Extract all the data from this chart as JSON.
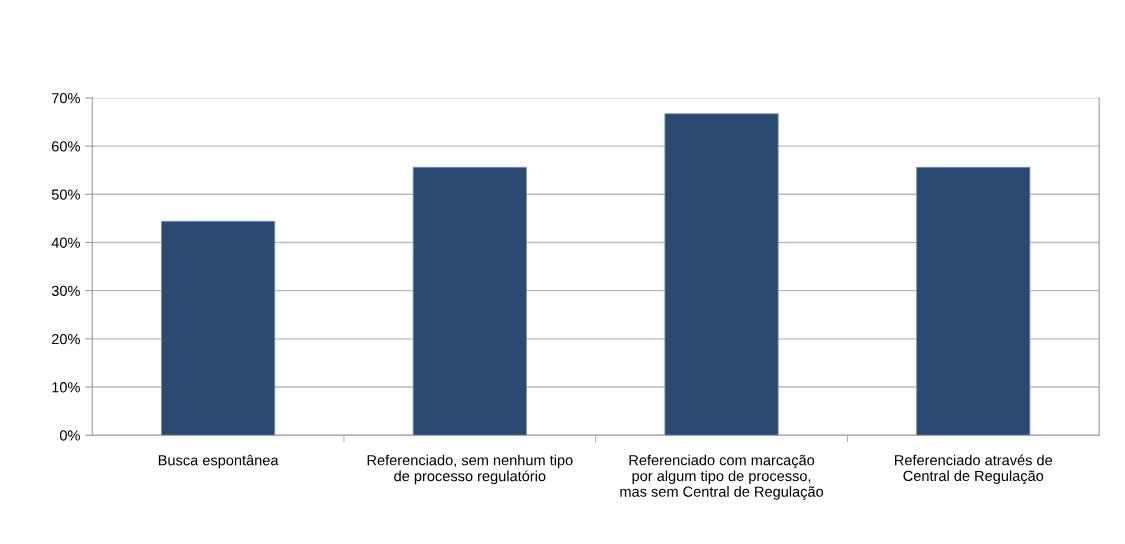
{
  "chart_data": {
    "type": "bar",
    "categories": [
      "Busca espontânea",
      "Referenciado, sem nenhum tipo\nde processo regulatório",
      "Referenciado com marcação\npor algum tipo de processo,\nmas sem Central de Regulação",
      "Referenciado através de\nCentral de Regulação"
    ],
    "values": [
      44.4,
      55.6,
      66.7,
      55.6
    ],
    "color": "#2b4a72",
    "ylim": [
      0,
      70
    ],
    "yticks": [
      {
        "value": 0,
        "label": "0%"
      },
      {
        "value": 10,
        "label": "10%"
      },
      {
        "value": 20,
        "label": "20%"
      },
      {
        "value": 30,
        "label": "30%"
      },
      {
        "value": 40,
        "label": "40%"
      },
      {
        "value": 50,
        "label": "50%"
      },
      {
        "value": 60,
        "label": "60%"
      },
      {
        "value": 70,
        "label": "70%"
      }
    ],
    "grid": "y"
  }
}
